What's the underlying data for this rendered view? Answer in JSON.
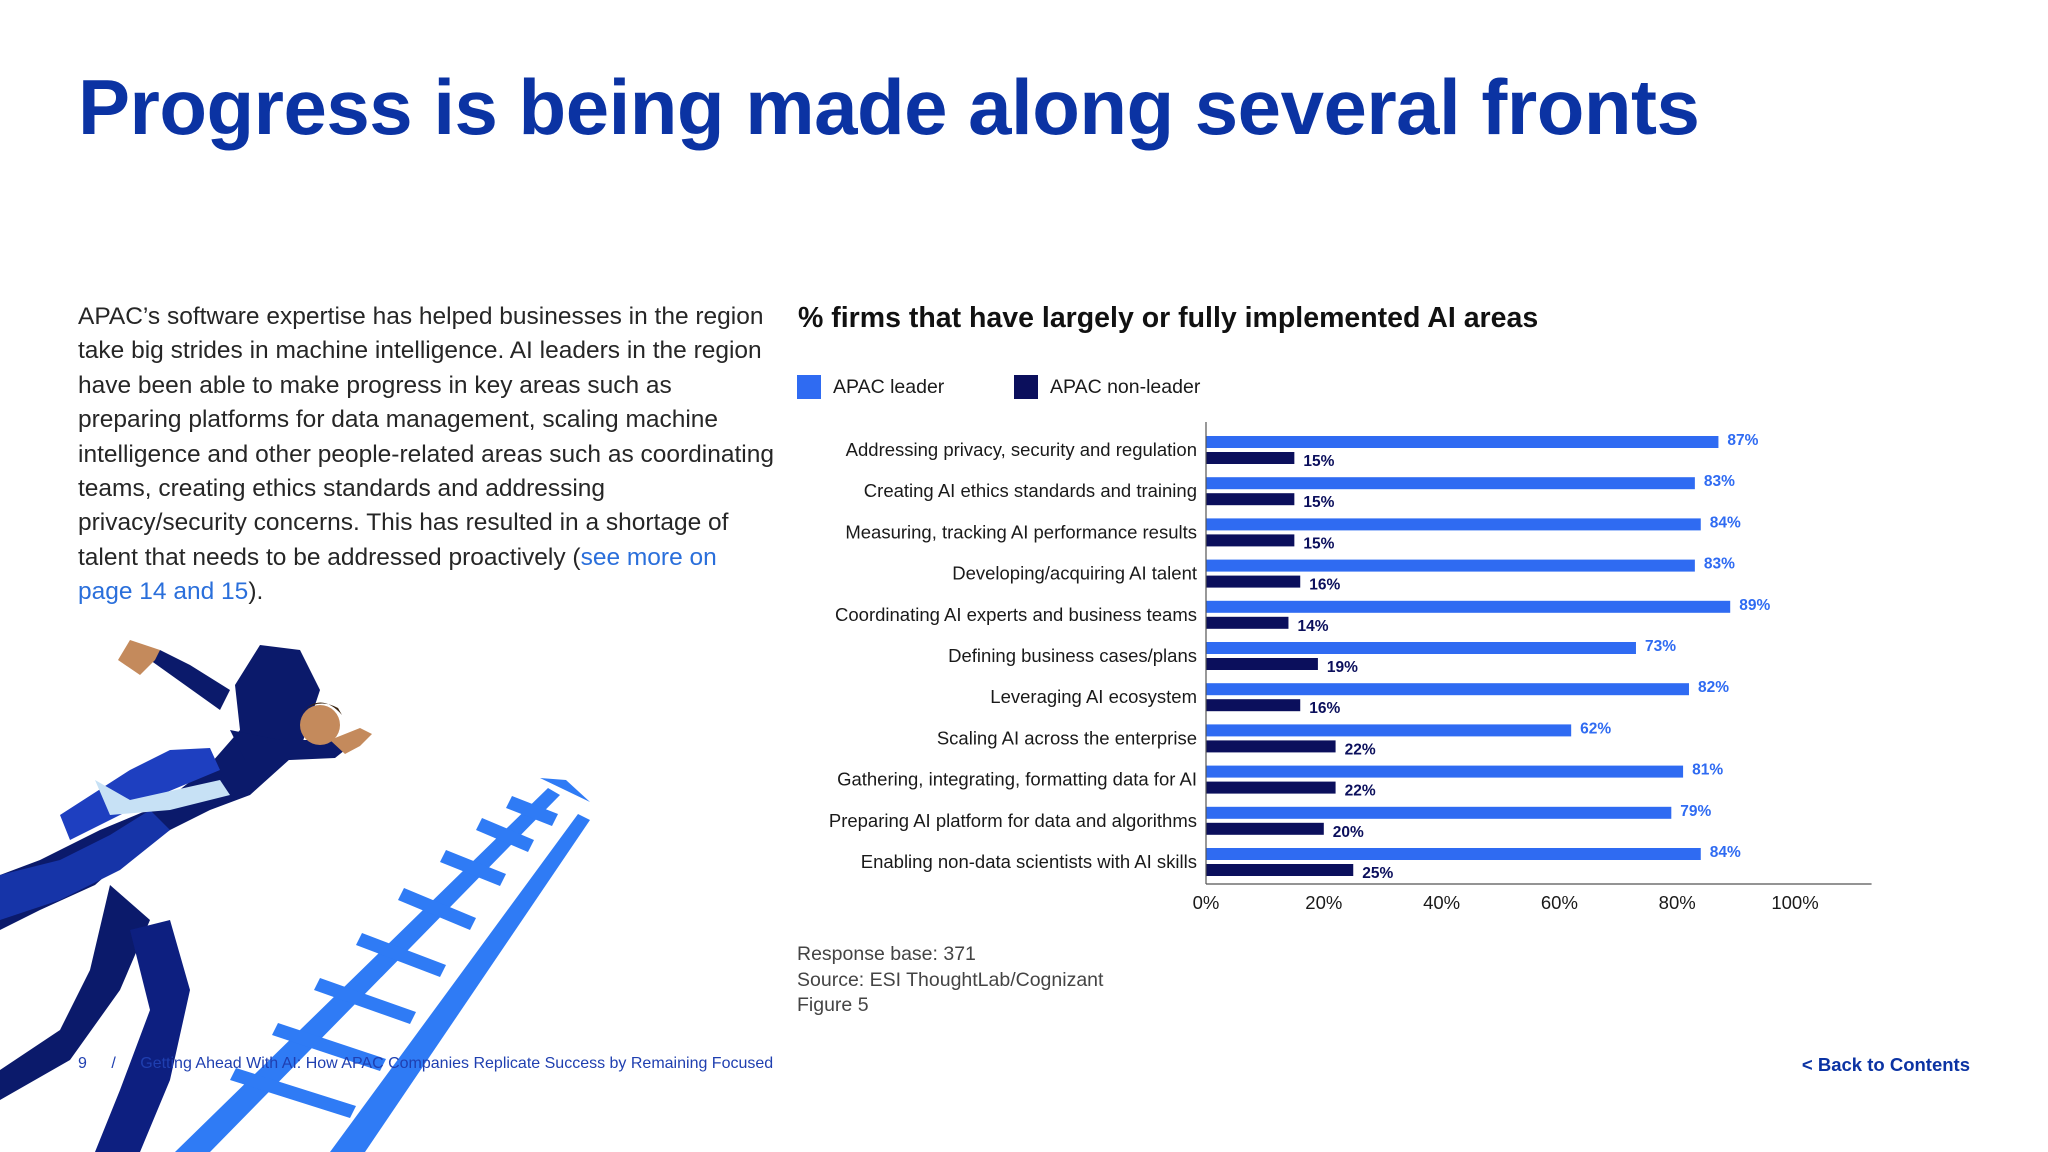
{
  "page": {
    "title": "Progress is being made along several fronts",
    "body_text_main": "APAC’s software expertise has helped businesses in the region take big strides in machine intelligence. AI leaders in the region have been able to make progress in key areas such as preparing platforms for data management, scaling machine intelligence and other people-related areas such as coordinating teams, creating ethics standards and addressing privacy/security concerns. This has resulted in a shortage of talent that needs to be addressed proactively (",
    "body_link": "see more on page 14 and 15",
    "body_text_end": ")."
  },
  "chart_data": {
    "type": "bar",
    "orientation": "horizontal",
    "title": "% firms that have largely or fully implemented AI areas",
    "categories": [
      "Addressing privacy, security and regulation",
      "Creating AI ethics standards and training",
      "Measuring, tracking AI performance results",
      "Developing/acquiring AI talent",
      "Coordinating AI experts and business teams",
      "Defining business cases/plans",
      "Leveraging AI ecosystem",
      "Scaling AI across the enterprise",
      "Gathering, integrating, formatting data for AI",
      "Preparing AI platform for data and algorithms",
      "Enabling non-data scientists with AI skills"
    ],
    "series": [
      {
        "name": "APAC leader",
        "color": "#2f6bf2",
        "label_color": "#2f6bf2",
        "values": [
          87,
          83,
          84,
          83,
          89,
          73,
          82,
          62,
          81,
          79,
          84
        ]
      },
      {
        "name": "APAC non-leader",
        "color": "#0b0f5c",
        "label_color": "#0b0f5c",
        "values": [
          15,
          15,
          15,
          16,
          14,
          19,
          16,
          22,
          22,
          20,
          25
        ]
      }
    ],
    "data_label_suffix": "%",
    "xlim": [
      0,
      100
    ],
    "x_ticks": [
      "0%",
      "20%",
      "40%",
      "60%",
      "80%",
      "100%"
    ],
    "legend_position": "top-left",
    "grid": false
  },
  "source": {
    "line1": "Response base: 371",
    "line2": "Source: ESI ThoughtLab/Cognizant",
    "line3": "Figure 5"
  },
  "footer": {
    "page_number": "9",
    "separator": "/",
    "doc_title": "Getting Ahead With AI: How APAC Companies Replicate Success by Remaining Focused",
    "back_label": "< Back to Contents"
  },
  "illustration": {
    "icon": "businessman-running-on-ladder-icon"
  }
}
